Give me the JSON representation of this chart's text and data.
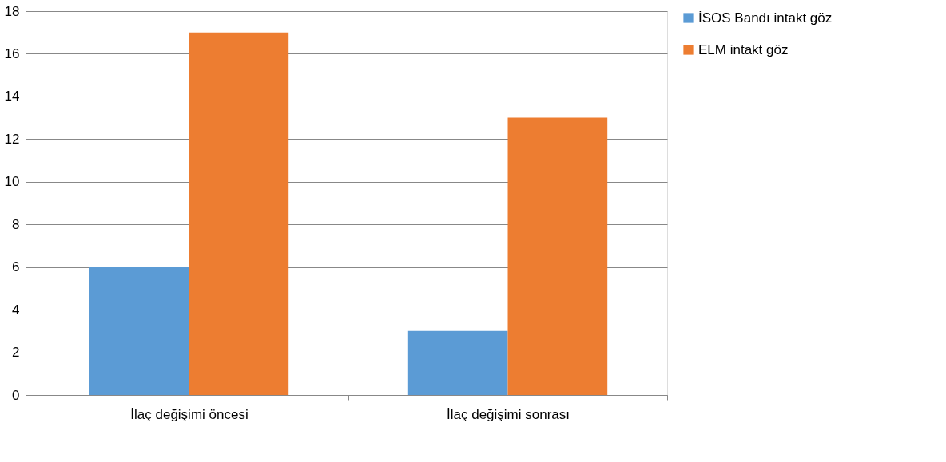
{
  "chart_data": {
    "type": "bar",
    "categories": [
      "İlaç değişimi öncesi",
      "İlaç değişimi sonrası"
    ],
    "series": [
      {
        "name": "İSOS Bandı intakt göz",
        "color": "#5b9bd5",
        "values": [
          6,
          3
        ]
      },
      {
        "name": "ELM intakt göz",
        "color": "#ed7d31",
        "values": [
          17,
          13
        ]
      }
    ],
    "ylim": [
      0,
      18
    ],
    "yticks": [
      0,
      2,
      4,
      6,
      8,
      10,
      12,
      14,
      16,
      18
    ],
    "grid": "y",
    "legend": "right"
  }
}
